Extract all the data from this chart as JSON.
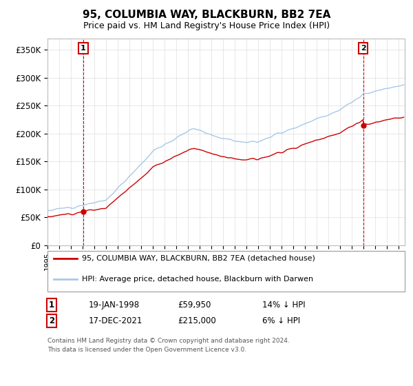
{
  "title": "95, COLUMBIA WAY, BLACKBURN, BB2 7EA",
  "subtitle": "Price paid vs. HM Land Registry's House Price Index (HPI)",
  "legend_line1": "95, COLUMBIA WAY, BLACKBURN, BB2 7EA (detached house)",
  "legend_line2": "HPI: Average price, detached house, Blackburn with Darwen",
  "annotation1_date": "19-JAN-1998",
  "annotation1_price": "£59,950",
  "annotation1_hpi": "14% ↓ HPI",
  "annotation1_year": 1998.05,
  "annotation1_value": 59950,
  "annotation2_date": "17-DEC-2021",
  "annotation2_price": "£215,000",
  "annotation2_hpi": "6% ↓ HPI",
  "annotation2_year": 2021.96,
  "annotation2_value": 215000,
  "ylim_min": 0,
  "ylim_max": 370000,
  "yticks": [
    0,
    50000,
    100000,
    150000,
    200000,
    250000,
    300000,
    350000
  ],
  "ytick_labels": [
    "£0",
    "£50K",
    "£100K",
    "£150K",
    "£200K",
    "£250K",
    "£300K",
    "£350K"
  ],
  "hpi_color": "#a8c8e8",
  "price_color": "#cc0000",
  "background_color": "#ffffff",
  "grid_color": "#dddddd",
  "footer_text": "Contains HM Land Registry data © Crown copyright and database right 2024.\nThis data is licensed under the Open Government Licence v3.0.",
  "xlim_min": 1995,
  "xlim_max": 2025.5
}
